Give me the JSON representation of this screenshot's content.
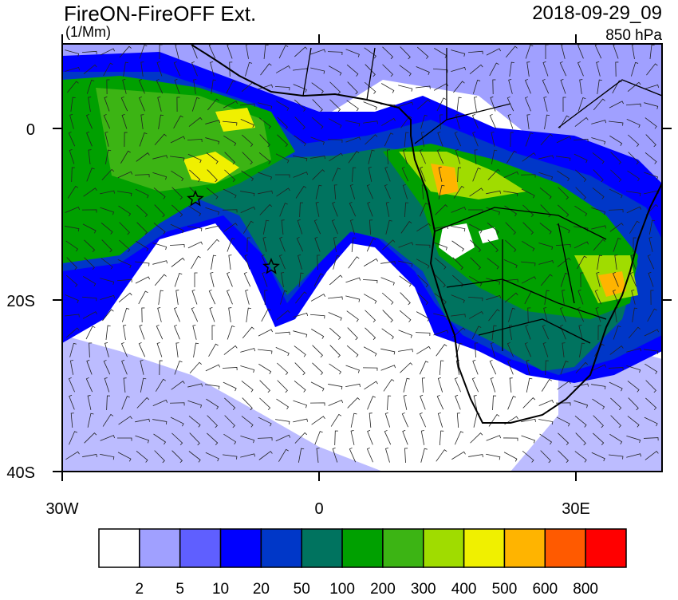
{
  "header": {
    "title": "FireON-FireOFF Ext.",
    "units": "(1/Mm)",
    "date": "2018-09-29_09",
    "level": "850 hPa"
  },
  "axes": {
    "y_labels": [
      "0",
      "20S",
      "40S"
    ],
    "x_labels": [
      "30W",
      "0",
      "30E"
    ]
  },
  "colorbar": {
    "colors": [
      "#ffffff",
      "#a0a0ff",
      "#5f5fff",
      "#0000ff",
      "#0037c8",
      "#00735f",
      "#00a000",
      "#3cb414",
      "#a0dc00",
      "#f0f000",
      "#ffb400",
      "#ff5a00",
      "#ff0000"
    ],
    "labels": [
      "2",
      "5",
      "10",
      "20",
      "50",
      "100",
      "200",
      "300",
      "400",
      "500",
      "600",
      "800"
    ]
  }
}
